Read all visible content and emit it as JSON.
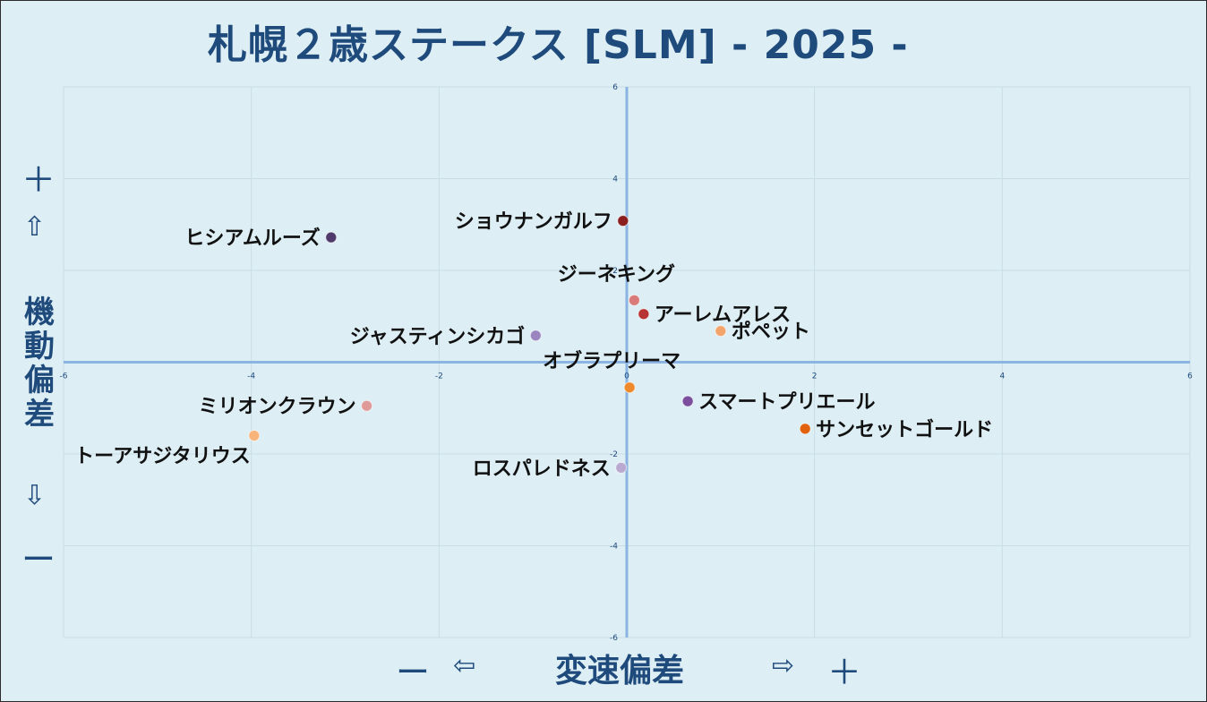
{
  "title": "札幌２歳ステークス [SLM]  - 2025 -",
  "y_axis": {
    "plus": "＋",
    "up_arrow": "⇧",
    "label": "機動偏差",
    "down_arrow": "⇩",
    "minus": "ー"
  },
  "x_axis": {
    "minus": "ー",
    "left_arrow": "⇦",
    "label": "変速偏差",
    "right_arrow": "⇨",
    "plus": "＋"
  },
  "chart_data": {
    "type": "scatter",
    "title": "札幌２歳ステークス [SLM]  - 2025 -",
    "xlabel": "変速偏差",
    "ylabel": "機動偏差",
    "xlim": [
      -6,
      6
    ],
    "ylim": [
      -6,
      6
    ],
    "x_ticks": [
      "-6",
      "-4",
      "-2",
      "0",
      "2",
      "4",
      "6"
    ],
    "y_ticks": [
      "6",
      "4",
      "2",
      "-2",
      "-4",
      "-6"
    ],
    "grid": true,
    "points": [
      {
        "name": "ショウナンガルフ",
        "x": -0.04,
        "y": 3.08,
        "color": "#8b1e1e",
        "label_side": "left"
      },
      {
        "name": "ヒシアムルーズ",
        "x": -3.15,
        "y": 2.72,
        "color": "#4f3a6b",
        "label_side": "left"
      },
      {
        "name": "ジーネキング",
        "x": 0.08,
        "y": 1.35,
        "color": "#d97b7b",
        "label_side": "top"
      },
      {
        "name": "アーレムアレス",
        "x": 0.18,
        "y": 1.05,
        "color": "#b73232",
        "label_side": "right"
      },
      {
        "name": "ポペット",
        "x": 1.0,
        "y": 0.68,
        "color": "#f2a46a",
        "label_side": "right"
      },
      {
        "name": "ジャスティンシカゴ",
        "x": -0.97,
        "y": 0.58,
        "color": "#9b85bf",
        "label_side": "left"
      },
      {
        "name": "オブラプリーマ",
        "x": 0.03,
        "y": -0.55,
        "color": "#ef8a2c",
        "label_side": "top"
      },
      {
        "name": "スマートプリエール",
        "x": 0.65,
        "y": -0.85,
        "color": "#7b4f9e",
        "label_side": "right"
      },
      {
        "name": "ミリオンクラウン",
        "x": -2.77,
        "y": -0.95,
        "color": "#df9999",
        "label_side": "left"
      },
      {
        "name": "サンセットゴールド",
        "x": 1.9,
        "y": -1.45,
        "color": "#e0620f",
        "label_side": "right"
      },
      {
        "name": "トーアサジタリウス",
        "x": -3.97,
        "y": -1.6,
        "color": "#f7b37a",
        "label_side": "bottomleft"
      },
      {
        "name": "ロスパレドネス",
        "x": -0.06,
        "y": -2.3,
        "color": "#b9a8cf",
        "label_side": "left"
      }
    ]
  }
}
